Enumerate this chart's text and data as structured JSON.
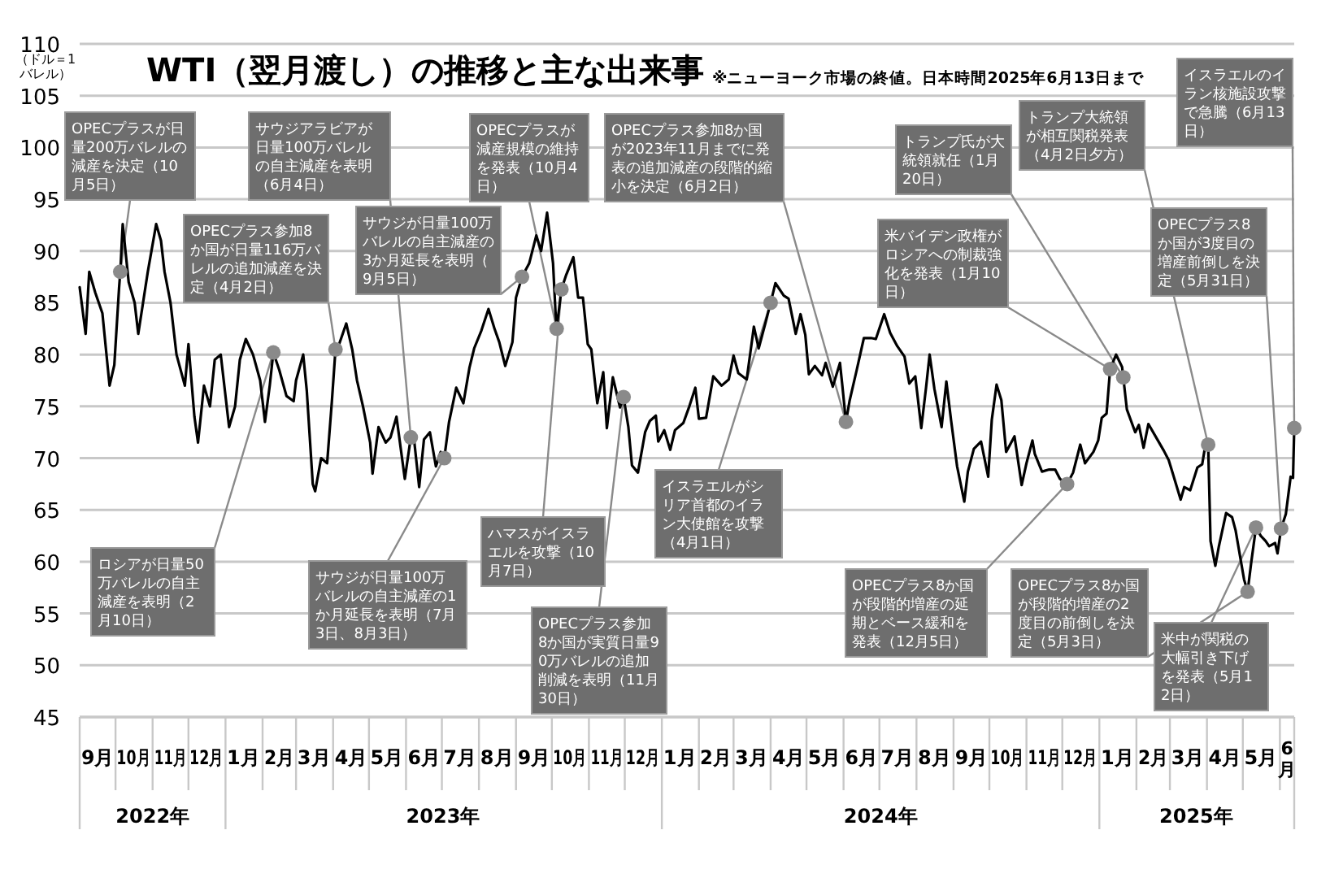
{
  "chart_data": {
    "type": "line",
    "title": "WTI（翌月渡し）の推移と主な出来事",
    "subtitle": "※ニューヨーク市場の終値。日本時間2025年6月13日まで",
    "ylabel": "（ドル＝1バレル）",
    "x": [
      "2022-09-01",
      "2022-09-06",
      "2022-09-09",
      "2022-09-14",
      "2022-09-20",
      "2022-09-26",
      "2022-09-30",
      "2022-10-04",
      "2022-10-05",
      "2022-10-07",
      "2022-10-12",
      "2022-10-17",
      "2022-10-20",
      "2022-10-24",
      "2022-10-28",
      "2022-11-04",
      "2022-11-08",
      "2022-11-11",
      "2022-11-16",
      "2022-11-21",
      "2022-11-28",
      "2022-12-01",
      "2022-12-06",
      "2022-12-09",
      "2022-12-14",
      "2022-12-19",
      "2022-12-23",
      "2022-12-28",
      "2023-01-04",
      "2023-01-09",
      "2023-01-13",
      "2023-01-18",
      "2023-01-24",
      "2023-01-30",
      "2023-02-03",
      "2023-02-07",
      "2023-02-10",
      "2023-02-15",
      "2023-02-21",
      "2023-02-27",
      "2023-03-01",
      "2023-03-07",
      "2023-03-10",
      "2023-03-15",
      "2023-03-17",
      "2023-03-22",
      "2023-03-27",
      "2023-03-31",
      "2023-04-03",
      "2023-04-06",
      "2023-04-12",
      "2023-04-17",
      "2023-04-21",
      "2023-04-26",
      "2023-05-02",
      "2023-05-04",
      "2023-05-09",
      "2023-05-15",
      "2023-05-19",
      "2023-05-24",
      "2023-05-31",
      "2023-06-05",
      "2023-06-08",
      "2023-06-12",
      "2023-06-16",
      "2023-06-21",
      "2023-06-26",
      "2023-06-30",
      "2023-07-03",
      "2023-07-07",
      "2023-07-13",
      "2023-07-19",
      "2023-07-24",
      "2023-07-28",
      "2023-08-03",
      "2023-08-09",
      "2023-08-14",
      "2023-08-18",
      "2023-08-23",
      "2023-08-29",
      "2023-09-01",
      "2023-09-06",
      "2023-09-12",
      "2023-09-18",
      "2023-09-22",
      "2023-09-27",
      "2023-10-02",
      "2023-10-04",
      "2023-10-05",
      "2023-10-09",
      "2023-10-13",
      "2023-10-19",
      "2023-10-23",
      "2023-10-27",
      "2023-10-31",
      "2023-11-03",
      "2023-11-08",
      "2023-11-13",
      "2023-11-16",
      "2023-11-21",
      "2023-11-27",
      "2023-11-30",
      "2023-12-04",
      "2023-12-07",
      "2023-12-12",
      "2023-12-18",
      "2023-12-22",
      "2023-12-27",
      "2023-12-29",
      "2024-01-03",
      "2024-01-08",
      "2024-01-12",
      "2024-01-19",
      "2024-01-24",
      "2024-01-29",
      "2024-02-01",
      "2024-02-07",
      "2024-02-13",
      "2024-02-20",
      "2024-02-26",
      "2024-03-01",
      "2024-03-05",
      "2024-03-12",
      "2024-03-18",
      "2024-03-22",
      "2024-03-28",
      "2024-04-01",
      "2024-04-05",
      "2024-04-12",
      "2024-04-16",
      "2024-04-22",
      "2024-04-26",
      "2024-04-30",
      "2024-05-03",
      "2024-05-08",
      "2024-05-14",
      "2024-05-17",
      "2024-05-23",
      "2024-05-29",
      "2024-05-31",
      "2024-06-03",
      "2024-06-06",
      "2024-06-12",
      "2024-06-18",
      "2024-06-24",
      "2024-06-28",
      "2024-07-05",
      "2024-07-10",
      "2024-07-16",
      "2024-07-22",
      "2024-07-26",
      "2024-07-31",
      "2024-08-05",
      "2024-08-09",
      "2024-08-12",
      "2024-08-16",
      "2024-08-22",
      "2024-08-26",
      "2024-08-30",
      "2024-09-04",
      "2024-09-10",
      "2024-09-13",
      "2024-09-18",
      "2024-09-24",
      "2024-09-30",
      "2024-10-03",
      "2024-10-07",
      "2024-10-11",
      "2024-10-15",
      "2024-10-22",
      "2024-10-28",
      "2024-11-01",
      "2024-11-06",
      "2024-11-08",
      "2024-11-14",
      "2024-11-20",
      "2024-11-25",
      "2024-11-29",
      "2024-12-05",
      "2024-12-10",
      "2024-12-16",
      "2024-12-20",
      "2024-12-27",
      "2024-12-31",
      "2025-01-03",
      "2025-01-07",
      "2025-01-10",
      "2025-01-15",
      "2025-01-20",
      "2025-01-21",
      "2025-01-24",
      "2025-01-31",
      "2025-02-03",
      "2025-02-07",
      "2025-02-11",
      "2025-02-18",
      "2025-02-24",
      "2025-02-28",
      "2025-03-04",
      "2025-03-10",
      "2025-03-13",
      "2025-03-18",
      "2025-03-24",
      "2025-03-28",
      "2025-03-31",
      "2025-04-02",
      "2025-04-04",
      "2025-04-08",
      "2025-04-11",
      "2025-04-17",
      "2025-04-22",
      "2025-04-25",
      "2025-05-02",
      "2025-05-05",
      "2025-05-08",
      "2025-05-12",
      "2025-05-16",
      "2025-05-20",
      "2025-05-23",
      "2025-05-28",
      "2025-05-30",
      "2025-06-02",
      "2025-06-06",
      "2025-06-10",
      "2025-06-12",
      "2025-06-13"
    ],
    "series": [
      {
        "color": "#000000",
        "values": [
          86.5,
          82,
          88,
          86,
          84,
          77,
          79,
          86.5,
          88,
          92.6,
          87,
          85,
          82,
          85,
          88,
          92.6,
          91,
          88,
          85,
          80,
          77,
          81,
          74,
          71.5,
          77,
          75,
          79.5,
          80,
          73,
          75,
          79.5,
          81.5,
          80,
          77.5,
          73.5,
          77,
          80.2,
          78.5,
          76,
          75.5,
          77.5,
          80,
          76.5,
          67.5,
          66.8,
          70,
          69.5,
          75.5,
          80.5,
          81,
          83,
          80.5,
          77.5,
          75,
          71.5,
          68.5,
          73,
          71.5,
          72,
          74,
          68,
          72,
          71.5,
          67.2,
          71.8,
          72.5,
          69.2,
          70.6,
          70,
          73.5,
          76.8,
          75.3,
          78.7,
          80.6,
          82.3,
          84.4,
          82.5,
          81.2,
          78.9,
          81.2,
          85.5,
          87.5,
          88.8,
          91.5,
          90,
          93.7,
          88.8,
          84.2,
          82.5,
          86.3,
          87.7,
          89.4,
          85.5,
          85.5,
          81,
          80.5,
          75.3,
          78.3,
          72.9,
          77.8,
          74.9,
          75.9,
          73,
          69.3,
          68.6,
          72.5,
          73.6,
          74.1,
          71.6,
          72.7,
          70.8,
          72.7,
          73.4,
          75,
          76.8,
          73.8,
          73.9,
          77.9,
          77,
          77.6,
          79.9,
          78.2,
          77.6,
          82.7,
          80.6,
          83.2,
          85,
          86.9,
          85.7,
          85.4,
          82,
          83.9,
          81.9,
          78.1,
          78.9,
          78,
          79.2,
          76.9,
          79.2,
          77,
          73.5,
          75.5,
          78.5,
          81.6,
          81.6,
          81.5,
          83.9,
          82.1,
          80.8,
          79.8,
          77.2,
          77.9,
          72.9,
          76.8,
          80,
          76.7,
          73,
          77.4,
          73.6,
          69.2,
          65.8,
          68.7,
          70.9,
          71.6,
          68.2,
          73.7,
          77.1,
          75.6,
          70.6,
          72.1,
          67.4,
          69.5,
          71.7,
          70.4,
          68.7,
          68.9,
          68.9,
          68,
          67.5,
          68.6,
          71.3,
          69.5,
          70.6,
          71.7,
          73.9,
          74.3,
          78.6,
          80,
          78.8,
          77.8,
          74.7,
          72.5,
          73.2,
          71,
          73.3,
          71.9,
          70.7,
          69.8,
          68.3,
          66,
          67.2,
          66.9,
          69.1,
          69.4,
          71.5,
          71.3,
          62,
          59.6,
          61.5,
          64.7,
          64.3,
          63,
          58.3,
          57.1,
          59.9,
          63.3,
          62.5,
          62,
          61.5,
          61.8,
          60.8,
          63.2,
          64.6,
          68.2,
          68.1,
          72.9
        ]
      }
    ],
    "xlim": [
      "2022-09-01",
      "2025-06-13"
    ],
    "ylim": [
      45,
      110
    ],
    "yticks": [
      45,
      50,
      55,
      60,
      65,
      70,
      75,
      80,
      85,
      90,
      95,
      100,
      105,
      110
    ],
    "grid": "y",
    "xticks": [
      {
        "value": "2022-09-16",
        "label": "9月"
      },
      {
        "value": "2022-10-16",
        "label": "10月"
      },
      {
        "value": "2022-11-16",
        "label": "11月"
      },
      {
        "value": "2022-12-16",
        "label": "12月"
      },
      {
        "value": "2023-01-16",
        "label": "1月"
      },
      {
        "value": "2023-02-15",
        "label": "2月"
      },
      {
        "value": "2023-03-16",
        "label": "3月"
      },
      {
        "value": "2023-04-16",
        "label": "4月"
      },
      {
        "value": "2023-05-16",
        "label": "5月"
      },
      {
        "value": "2023-06-16",
        "label": "6月"
      },
      {
        "value": "2023-07-16",
        "label": "7月"
      },
      {
        "value": "2023-08-16",
        "label": "8月"
      },
      {
        "value": "2023-09-16",
        "label": "9月"
      },
      {
        "value": "2023-10-16",
        "label": "10月"
      },
      {
        "value": "2023-11-16",
        "label": "11月"
      },
      {
        "value": "2023-12-16",
        "label": "12月"
      },
      {
        "value": "2024-01-16",
        "label": "1月"
      },
      {
        "value": "2024-02-15",
        "label": "2月"
      },
      {
        "value": "2024-03-16",
        "label": "3月"
      },
      {
        "value": "2024-04-16",
        "label": "4月"
      },
      {
        "value": "2024-05-16",
        "label": "5月"
      },
      {
        "value": "2024-06-16",
        "label": "6月"
      },
      {
        "value": "2024-07-16",
        "label": "7月"
      },
      {
        "value": "2024-08-16",
        "label": "8月"
      },
      {
        "value": "2024-09-16",
        "label": "9月"
      },
      {
        "value": "2024-10-16",
        "label": "10月"
      },
      {
        "value": "2024-11-16",
        "label": "11月"
      },
      {
        "value": "2024-12-16",
        "label": "12月"
      },
      {
        "value": "2025-01-16",
        "label": "1月"
      },
      {
        "value": "2025-02-15",
        "label": "2月"
      },
      {
        "value": "2025-03-16",
        "label": "3月"
      },
      {
        "value": "2025-04-16",
        "label": "4月"
      },
      {
        "value": "2025-05-16",
        "label": "5月"
      },
      {
        "value": "2025-06-07",
        "label": "6月"
      }
    ],
    "x2lim": [
      "2022-09-01",
      "2025-06-13"
    ],
    "x2ticks": [
      {
        "value": "2022-11-01",
        "label": "2022年"
      },
      {
        "value": "2023-07-02",
        "label": "2023年"
      },
      {
        "value": "2024-07-02",
        "label": "2024年"
      },
      {
        "value": "2025-03-23",
        "label": "2025年"
      }
    ],
    "annotations": [
      {
        "text": "OPECプラスが日量200万バレルの減産を決定（10月5日）",
        "x": "2022-10-05",
        "y": 88
      },
      {
        "text": "OPECプラス参加8か国が日量116万バレルの追加減産を決定（4月2日）",
        "x": "2023-04-03",
        "y": 80.5
      },
      {
        "text": "サウジアラビアが日量100万バレルの自主減産を表明（6月4日）",
        "x": "2023-06-05",
        "y": 72
      },
      {
        "text": "サウジが日量100万バレルの自主減産の3か月延長を表明（9月5日）",
        "x": "2023-09-06",
        "y": 87.5
      },
      {
        "text": "OPECプラスが減産規模の維持を発表（10月4日）",
        "x": "2023-10-05",
        "y": 82.5
      },
      {
        "text": "OPECプラス参加8か国が2023年11月までに発表の追加減産の段階的縮小を決定（6月2日）",
        "x": "2024-06-03",
        "y": 73.5
      },
      {
        "text": "トランプ氏が大統領就任（1月20日）",
        "x": "2025-01-21",
        "y": 77.8
      },
      {
        "text": "トランプ大統領が相互関税発表（4月2日夕方）",
        "x": "2025-04-02",
        "y": 71.3
      },
      {
        "text": "イスラエルのイラン核施設攻撃で急騰（6月13日）",
        "x": "2025-06-13",
        "y": 72.9
      },
      {
        "text": "米バイデン政権がロシアへの制裁強化を発表（1月10日）",
        "x": "2025-01-10",
        "y": 78.6
      },
      {
        "text": "OPECプラス8か国が3度目の増産前倒しを決定（5月31日）",
        "x": "2025-06-02",
        "y": 63.2
      },
      {
        "text": "ロシアが日量50万バレルの自主減産を表明（2月10日）",
        "x": "2023-02-10",
        "y": 80.2
      },
      {
        "text": "サウジが日量100万バレルの自主減産の1か月延長を表明（7月3日、8月3日）",
        "x": "2023-07-03",
        "y": 70
      },
      {
        "text": "ハマスがイスラエルを攻撃（10月7日）",
        "x": "2023-10-09",
        "y": 86.3
      },
      {
        "text": "OPECプラス参加8か国が実質日量90万バレルの追加削減を表明（11月30日）",
        "x": "2023-11-30",
        "y": 75.9
      },
      {
        "text": "イスラエルがシリア首都のイラン大使館を攻撃（4月1日）",
        "x": "2024-04-01",
        "y": 85
      },
      {
        "text": "OPECプラス8か国が段階的増産の延期とベース緩和を発表（12月5日）",
        "x": "2024-12-05",
        "y": 67.5
      },
      {
        "text": "OPECプラス8か国が段階的増産の2度目の前倒しを決定（5月3日）",
        "x": "2025-05-05",
        "y": 57.1
      },
      {
        "text": "米中が関税の大幅引き下げを発表（5月12日）",
        "x": "2025-05-12",
        "y": 63.3
      }
    ]
  }
}
